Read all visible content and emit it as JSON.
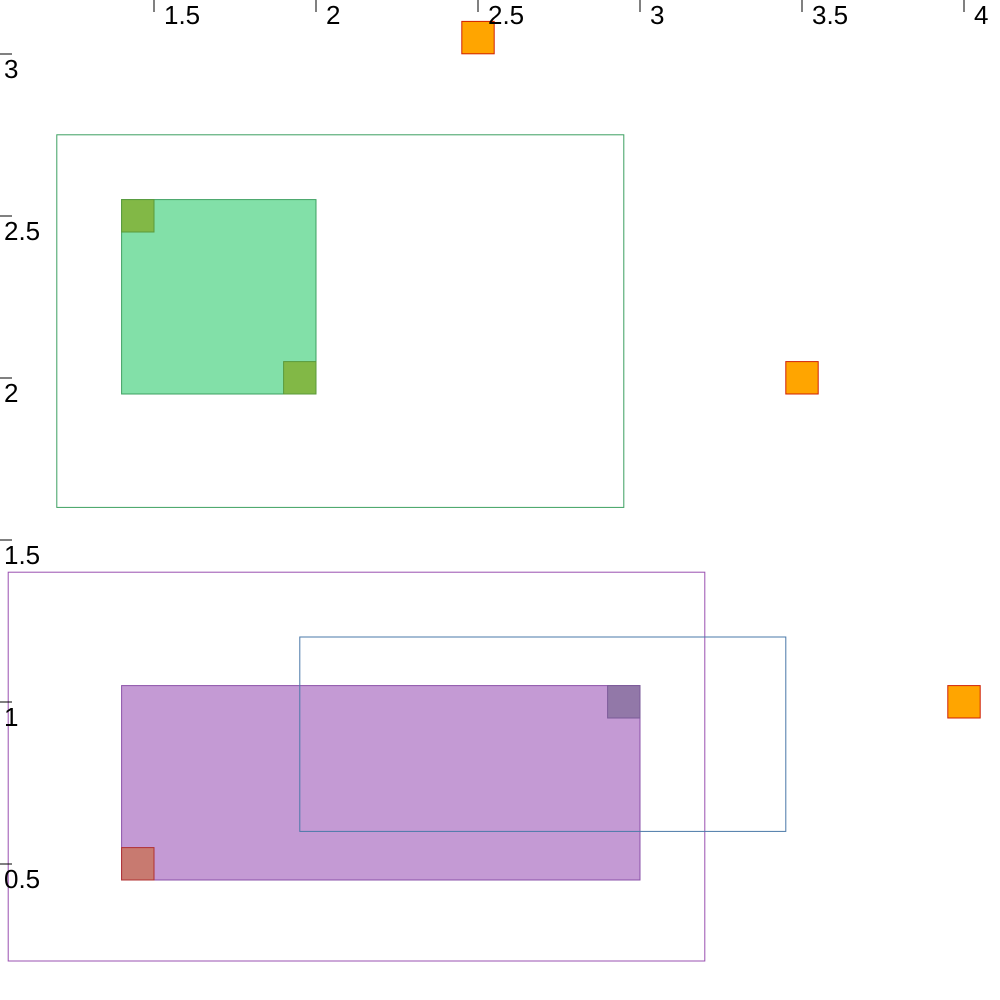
{
  "chart_data": {
    "type": "rectangles",
    "title": "",
    "xlabel": "",
    "ylabel": "",
    "xlim": [
      1.0,
      4.05
    ],
    "ylim": [
      0.12,
      3.2
    ],
    "x_ticks": [
      {
        "value": 1.5,
        "label": "1.5"
      },
      {
        "value": 2,
        "label": "2"
      },
      {
        "value": 2.5,
        "label": "2.5"
      },
      {
        "value": 3,
        "label": "3"
      },
      {
        "value": 3.5,
        "label": "3.5"
      },
      {
        "value": 4,
        "label": "4"
      }
    ],
    "y_ticks": [
      {
        "value": 3,
        "label": "3"
      },
      {
        "value": 2.5,
        "label": "2.5"
      },
      {
        "value": 2,
        "label": "2"
      },
      {
        "value": 1.5,
        "label": "1.5"
      },
      {
        "value": 1,
        "label": "1"
      },
      {
        "value": 0.5,
        "label": "0.5"
      }
    ],
    "rects": [
      {
        "name": "green-outline-rect",
        "x0": 1.2,
        "x1": 2.95,
        "y0": 1.65,
        "y1": 2.8,
        "fill": "none",
        "stroke": "#3ca060"
      },
      {
        "name": "green-filled-rect",
        "x0": 1.4,
        "x1": 2.0,
        "y0": 2.0,
        "y1": 2.6,
        "fill": "#82e0a8",
        "stroke": "#3ca060"
      },
      {
        "name": "green-marker-top-left",
        "x0": 1.4,
        "x1": 1.5,
        "y0": 2.5,
        "y1": 2.6,
        "fill": "#82b846",
        "stroke": "#5a9a3a"
      },
      {
        "name": "green-marker-bottom-right",
        "x0": 1.9,
        "x1": 2.0,
        "y0": 2.0,
        "y1": 2.1,
        "fill": "#82b846",
        "stroke": "#5a9a3a"
      },
      {
        "name": "purple-outline-rect",
        "x0": 1.05,
        "x1": 3.2,
        "y0": 0.25,
        "y1": 1.45,
        "fill": "none",
        "stroke": "#9a50b0"
      },
      {
        "name": "purple-filled-rect",
        "x0": 1.4,
        "x1": 3.0,
        "y0": 0.5,
        "y1": 1.1,
        "fill": "#c49ad4",
        "stroke": "#8a50a8"
      },
      {
        "name": "blue-outline-rect",
        "x0": 1.95,
        "x1": 3.45,
        "y0": 0.65,
        "y1": 1.25,
        "fill": "none",
        "stroke": "#4a78a8"
      },
      {
        "name": "purple-marker-top-right",
        "x0": 2.9,
        "x1": 3.0,
        "y0": 1.0,
        "y1": 1.1,
        "fill": "#9278a8",
        "stroke": "#7a5a98"
      },
      {
        "name": "red-marker-bottom-left",
        "x0": 1.4,
        "x1": 1.5,
        "y0": 0.5,
        "y1": 0.6,
        "fill": "#c87a70",
        "stroke": "#b03030"
      },
      {
        "name": "orange-marker-top",
        "x0": 2.45,
        "x1": 2.55,
        "y0": 3.05,
        "y1": 3.15,
        "fill": "#ffa500",
        "stroke": "#d02000"
      },
      {
        "name": "orange-marker-middle",
        "x0": 3.45,
        "x1": 3.55,
        "y0": 2.0,
        "y1": 2.1,
        "fill": "#ffa500",
        "stroke": "#d02000"
      },
      {
        "name": "orange-marker-right",
        "x0": 3.95,
        "x1": 4.05,
        "y0": 1.0,
        "y1": 1.1,
        "fill": "#ffa500",
        "stroke": "#d02000"
      }
    ]
  }
}
